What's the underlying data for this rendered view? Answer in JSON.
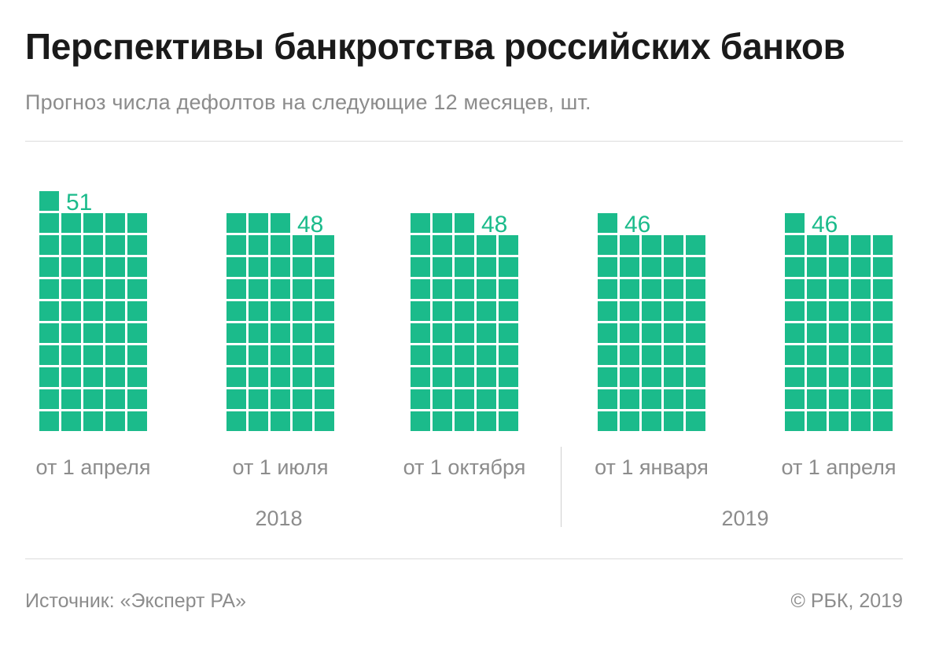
{
  "title": "Перспективы банкротства российских банков",
  "subtitle": "Прогноз числа дефолтов на следующие 12 месяцев, шт.",
  "footer": {
    "source": "Источник: «Эксперт РА»",
    "copyright": "© РБК, 2019"
  },
  "colors": {
    "accent": "#1bbb8b",
    "axis_text": "#8c8c8c",
    "title": "#1a1a1a",
    "rule": "#dcdcdc"
  },
  "chart_data": {
    "type": "bar",
    "subtype": "unit-grid",
    "categories": [
      "от 1 апреля",
      "от 1 июля",
      "от 1 октября",
      "от 1 января",
      "от 1 апреля"
    ],
    "values": [
      51,
      48,
      48,
      46,
      46
    ],
    "value_labels": [
      "51",
      "48",
      "48",
      "46",
      "46"
    ],
    "year_groups": [
      {
        "label": "2018",
        "categories": [
          0,
          1,
          2
        ]
      },
      {
        "label": "2019",
        "categories": [
          3,
          4
        ]
      }
    ],
    "units_per_row": 5,
    "grid": false
  }
}
